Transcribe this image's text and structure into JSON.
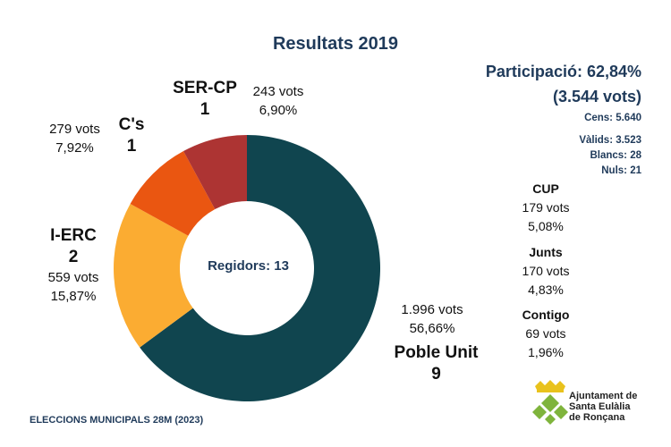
{
  "chart_data": {
    "type": "pie",
    "title": "Resultats 2019",
    "center_label": "Regidors: 13",
    "slices": [
      {
        "name": "Poble Unit",
        "votes": "1.996 vots",
        "percent_label": "56,66%",
        "value": 56.66,
        "seats": "9",
        "color": "#10454f"
      },
      {
        "name": "I-ERC",
        "votes": "559 vots",
        "percent_label": "15,87%",
        "value": 15.87,
        "seats": "2",
        "color": "#fbac32"
      },
      {
        "name": "C's",
        "votes": "279 vots",
        "percent_label": "7,92%",
        "value": 7.92,
        "seats": "1",
        "color": "#ea5611"
      },
      {
        "name": "SER-CP",
        "votes": "243 vots",
        "percent_label": "6,90%",
        "value": 6.9,
        "seats": "1",
        "color": "#ad3433"
      }
    ],
    "other_parties": [
      {
        "name": "CUP",
        "votes": "179 vots",
        "percent_label": "5,08%",
        "value": 5.08
      },
      {
        "name": "Junts",
        "votes": "170 vots",
        "percent_label": "4,83%",
        "value": 4.83
      },
      {
        "name": "Contigo",
        "votes": "69 vots",
        "percent_label": "1,96%",
        "value": 1.96
      }
    ]
  },
  "participation": {
    "line1": "Participació: 62,84%",
    "line2": "(3.544 vots)",
    "cens": "Cens: 5.640",
    "valids": "Vàlids: 3.523",
    "blancs": "Blancs: 28",
    "nuls": "Nuls: 21"
  },
  "footer": "ELECCIONS MUNICIPALS 28M (2023)",
  "logo": {
    "line1": "Ajuntament de",
    "line2": "Santa Eulàlia",
    "line3": "de Ronçana",
    "colors": {
      "crown": "#e9c21c",
      "diamond": "#7fb43c"
    }
  }
}
